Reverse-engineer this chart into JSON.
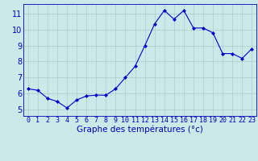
{
  "x": [
    0,
    1,
    2,
    3,
    4,
    5,
    6,
    7,
    8,
    9,
    10,
    11,
    12,
    13,
    14,
    15,
    16,
    17,
    18,
    19,
    20,
    21,
    22,
    23
  ],
  "y": [
    6.3,
    6.2,
    5.7,
    5.5,
    5.1,
    5.6,
    5.85,
    5.9,
    5.9,
    6.3,
    7.0,
    7.7,
    9.0,
    10.35,
    11.2,
    10.65,
    11.2,
    10.1,
    10.1,
    9.8,
    8.5,
    8.5,
    8.2,
    8.8
  ],
  "line_color": "#0000cc",
  "marker": "D",
  "marker_size": 2,
  "bg_color": "#cce8e8",
  "grid_color": "#aacaca",
  "axis_color": "#0000bb",
  "xlabel": "Graphe des températures (°c)",
  "xlabel_fontsize": 7.5,
  "ylabel_ticks": [
    5,
    6,
    7,
    8,
    9,
    10,
    11
  ],
  "xlim": [
    -0.5,
    23.5
  ],
  "ylim": [
    4.6,
    11.6
  ],
  "xtick_labels": [
    "0",
    "1",
    "2",
    "3",
    "4",
    "5",
    "6",
    "7",
    "8",
    "9",
    "10",
    "11",
    "12",
    "13",
    "14",
    "15",
    "16",
    "17",
    "18",
    "19",
    "20",
    "21",
    "22",
    "23"
  ],
  "bottom_bar_color": "#0000bb",
  "tick_fontsize": 6,
  "ytick_fontsize": 7
}
